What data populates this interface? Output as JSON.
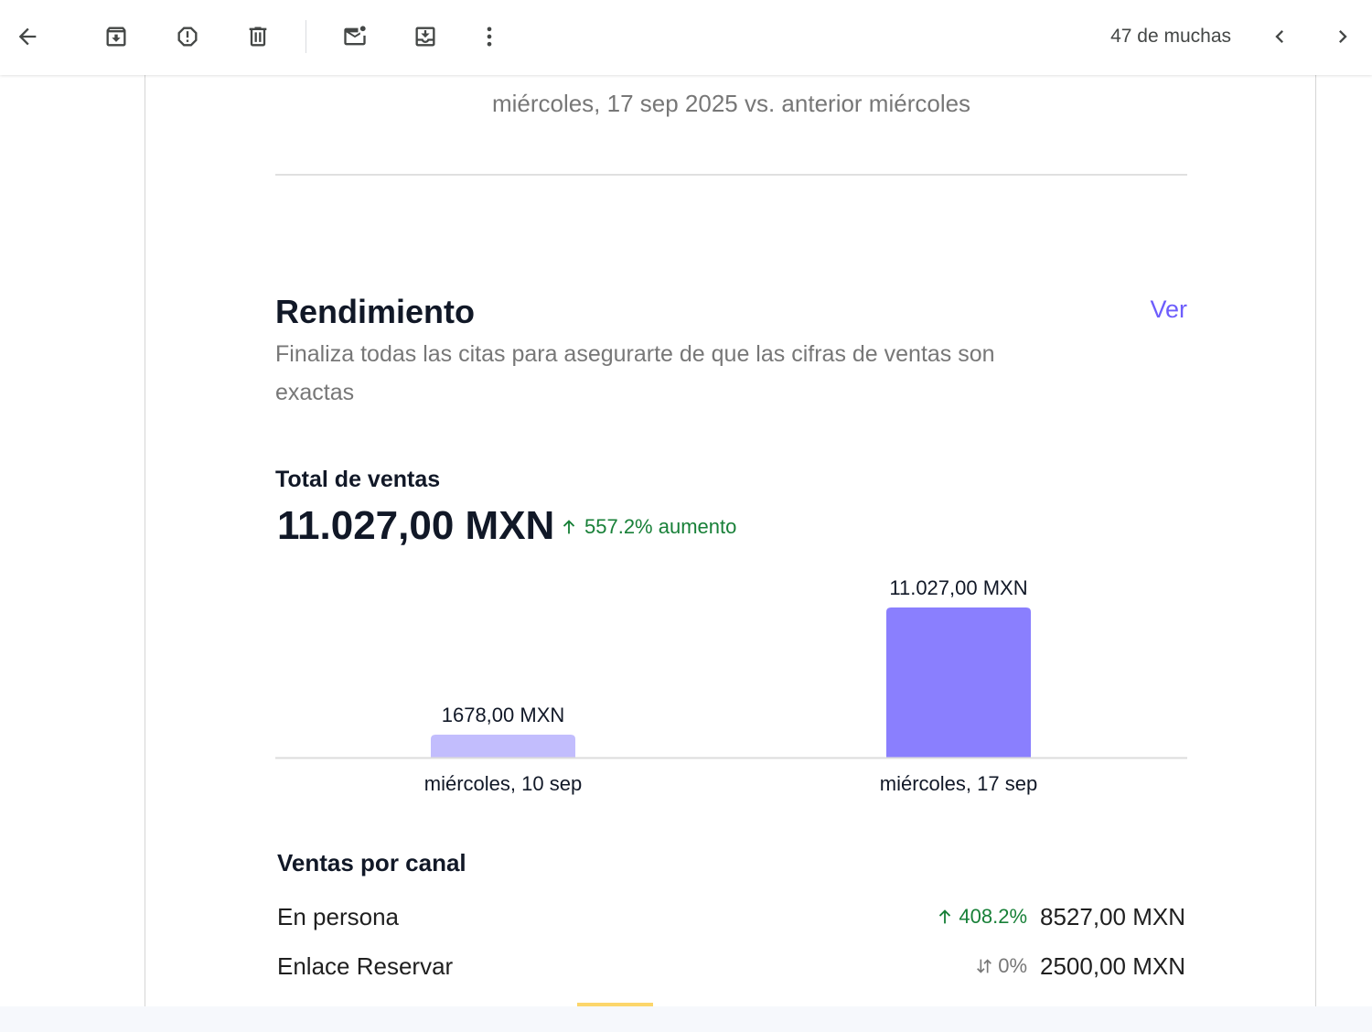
{
  "toolbar": {
    "pager_text": "47 de muchas",
    "icons": [
      "arrow-back-icon",
      "archive-icon",
      "report-spam-icon",
      "delete-icon",
      "mark-unread-icon",
      "move-to-icon",
      "more-vert-icon",
      "chevron-left-icon",
      "chevron-right-icon"
    ]
  },
  "email": {
    "date_subtitle": "miércoles, 17 sep 2025 vs. anterior miércoles",
    "performance": {
      "title": "Rendimiento",
      "link": "Ver",
      "description": "Finaliza todas las citas para asegurarte de que las cifras de ventas son exactas"
    },
    "total_sales": {
      "label": "Total de ventas",
      "value": "11.027,00 MXN",
      "change": "557.2% aumento"
    },
    "channels": {
      "title": "Ventas por canal",
      "rows": [
        {
          "name": "En persona",
          "pct": "408.2%",
          "amount": "8527,00 MXN",
          "trend": "up"
        },
        {
          "name": "Enlace Reservar",
          "pct": "0%",
          "amount": "2500,00 MXN",
          "trend": "flat"
        }
      ]
    }
  },
  "colors": {
    "accent": "#6d5dfc",
    "bar_previous": "#c2bdfd",
    "bar_current": "#8a7ffe",
    "positive": "#188038"
  },
  "chart_data": {
    "type": "bar",
    "categories": [
      "miércoles, 10 sep",
      "miércoles, 17 sep"
    ],
    "values": [
      1678,
      11027
    ],
    "data_labels": [
      "1678,00 MXN",
      "11.027,00 MXN"
    ],
    "title": "",
    "xlabel": "",
    "ylabel": "",
    "ylim": [
      0,
      11027
    ],
    "grid": false
  }
}
